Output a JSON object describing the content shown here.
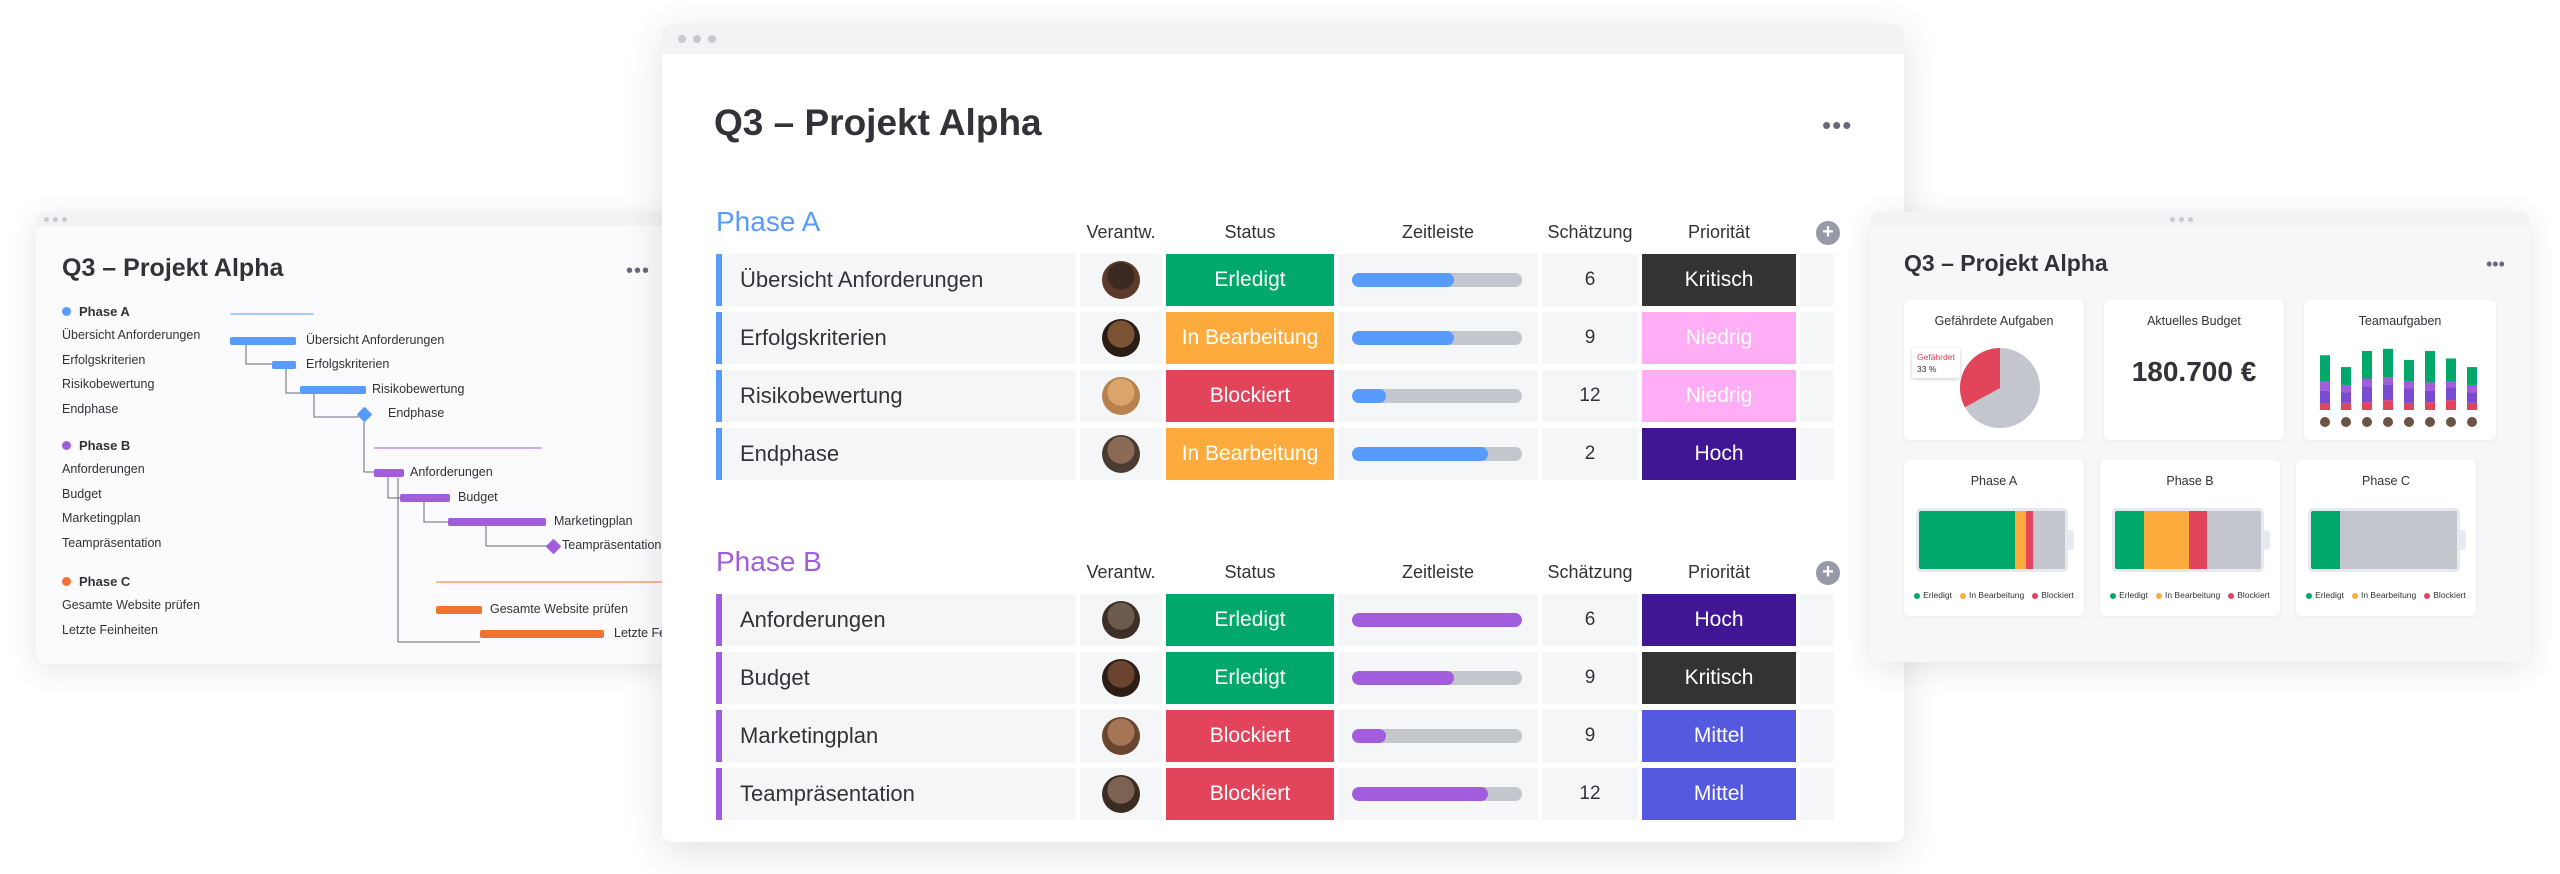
{
  "colors": {
    "done": "#00a86b",
    "working": "#fdab3d",
    "stuck": "#e2445c",
    "kritisch": "#333333",
    "niedrig": "#ffadf5",
    "hoch": "#401694",
    "mittel": "#5559df",
    "phaseA": "#579bfc",
    "phaseB": "#a25ddc",
    "phaseC": "#f2722f"
  },
  "gantt": {
    "title": "Q3 – Projekt Alpha",
    "more": "•••",
    "groups": [
      {
        "name": "Phase A",
        "items": [
          "Übersicht Anforderungen",
          "Erfolgskriterien",
          "Risikobewertung",
          "Endphase"
        ]
      },
      {
        "name": "Phase B",
        "items": [
          "Anforderungen",
          "Budget",
          "Marketingplan",
          "Teampräsentation"
        ]
      },
      {
        "name": "Phase C",
        "items": [
          "Gesamte Website prüfen",
          "Letzte Feinheiten"
        ]
      }
    ],
    "bar_labels": [
      "Übersicht Anforderungen",
      "Erfolgskriterien",
      "Risikobewertung",
      "Endphase",
      "Anforderungen",
      "Budget",
      "Marketingplan",
      "Teampräsentation",
      "Gesamte Website prüfen",
      "Letzte Fe"
    ]
  },
  "board": {
    "title": "Q3 – Projekt Alpha",
    "more": "•••",
    "columns": {
      "owner": "Verantw.",
      "status": "Status",
      "timeline": "Zeitleiste",
      "estimate": "Schätzung",
      "priority": "Priorität"
    },
    "add_icon": "+",
    "groups": [
      {
        "name": "Phase A",
        "rows": [
          {
            "item": "Übersicht Anforderungen",
            "status": "Erledigt",
            "status_key": "done",
            "timeline": 0.6,
            "estimate": "6",
            "priority": "Kritisch",
            "prio_key": "kritisch"
          },
          {
            "item": "Erfolgskriterien",
            "status": "In Bearbeitung",
            "status_key": "working",
            "timeline": 0.6,
            "estimate": "9",
            "priority": "Niedrig",
            "prio_key": "niedrig"
          },
          {
            "item": "Risikobewertung",
            "status": "Blockiert",
            "status_key": "stuck",
            "timeline": 0.2,
            "estimate": "12",
            "priority": "Niedrig",
            "prio_key": "niedrig"
          },
          {
            "item": "Endphase",
            "status": "In Bearbeitung",
            "status_key": "working",
            "timeline": 0.8,
            "estimate": "2",
            "priority": "Hoch",
            "prio_key": "hoch"
          }
        ]
      },
      {
        "name": "Phase B",
        "rows": [
          {
            "item": "Anforderungen",
            "status": "Erledigt",
            "status_key": "done",
            "timeline": 1.0,
            "estimate": "6",
            "priority": "Hoch",
            "prio_key": "hoch"
          },
          {
            "item": "Budget",
            "status": "Erledigt",
            "status_key": "done",
            "timeline": 0.6,
            "estimate": "9",
            "priority": "Kritisch",
            "prio_key": "kritisch"
          },
          {
            "item": "Marketingplan",
            "status": "Blockiert",
            "status_key": "stuck",
            "timeline": 0.2,
            "estimate": "9",
            "priority": "Mittel",
            "prio_key": "mittel"
          },
          {
            "item": "Teampräsentation",
            "status": "Blockiert",
            "status_key": "stuck",
            "timeline": 0.8,
            "estimate": "12",
            "priority": "Mittel",
            "prio_key": "mittel"
          }
        ]
      }
    ]
  },
  "dashboard": {
    "title": "Q3 – Projekt Alpha",
    "more": "•••",
    "pie": {
      "title": "Gefährdete Aufgaben",
      "label": "Gefährdet",
      "percent": "33 %",
      "fraction": 0.33
    },
    "budget": {
      "title": "Aktuelles Budget",
      "value": "180.700 €"
    },
    "team": {
      "title": "Teamaufgaben"
    },
    "phases": [
      {
        "title": "Phase A",
        "done": 0.66,
        "working": 0.07,
        "stuck": 0.05
      },
      {
        "title": "Phase B",
        "done": 0.2,
        "working": 0.31,
        "stuck": 0.12
      },
      {
        "title": "Phase C",
        "done": 0.2,
        "working": 0.0,
        "stuck": 0.0
      }
    ],
    "legend": {
      "done": "Erledigt",
      "working": "In Bearbeitung",
      "stuck": "Blockiert"
    }
  }
}
